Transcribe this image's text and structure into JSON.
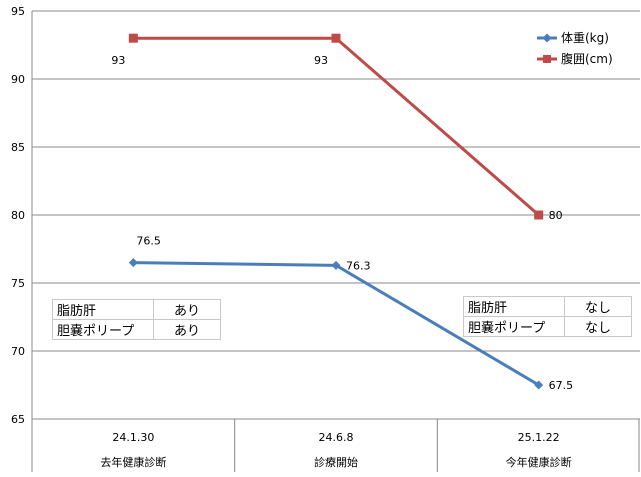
{
  "chart_data": {
    "type": "line",
    "categories": [
      {
        "date": "24.1.30",
        "label": "去年健康診断"
      },
      {
        "date": "24.6.8",
        "label": "診療開始"
      },
      {
        "date": "25.1.22",
        "label": "今年健康診断"
      }
    ],
    "series": [
      {
        "name": "体重(kg)",
        "values": [
          76.5,
          76.3,
          67.5
        ],
        "color": "#4a7ebb",
        "marker": "diamond"
      },
      {
        "name": "腹囲(cm)",
        "values": [
          93,
          93,
          80
        ],
        "color": "#be4b48",
        "marker": "square"
      }
    ],
    "ylim": [
      65,
      95
    ],
    "yticks": [
      65,
      70,
      75,
      80,
      85,
      90,
      95
    ],
    "grid": true,
    "legend_position": "top-right"
  },
  "notes": {
    "left": [
      {
        "key": "脂肪肝",
        "value": "あり"
      },
      {
        "key": "胆嚢ポリープ",
        "value": "あり"
      }
    ],
    "right": [
      {
        "key": "脂肪肝",
        "value": "なし"
      },
      {
        "key": "胆嚢ポリープ",
        "value": "なし"
      }
    ]
  }
}
